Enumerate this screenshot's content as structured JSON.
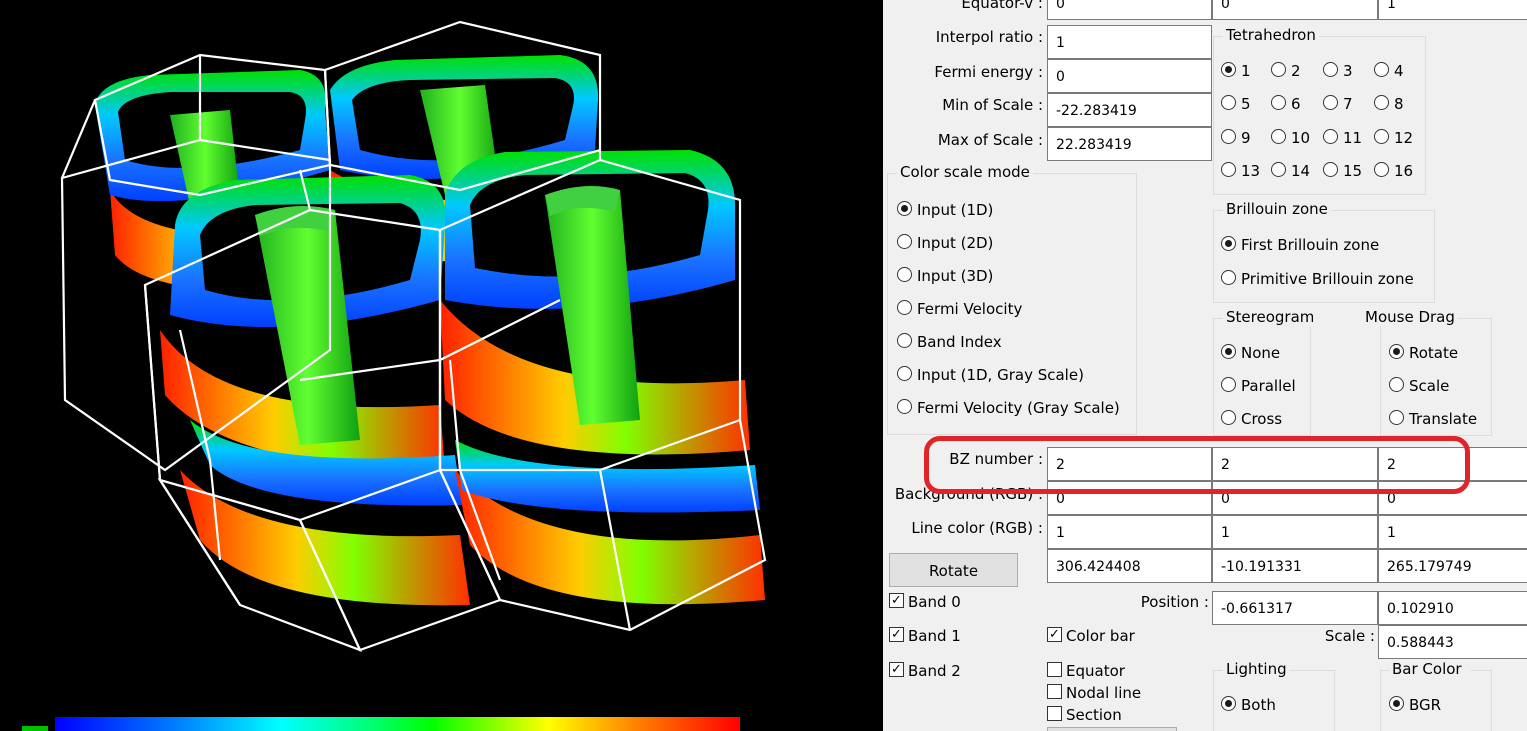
{
  "viewport": {
    "background": "#000000",
    "wire_color": "#ffffff",
    "colorbar_colors": [
      "#0000ff",
      "#00ffff",
      "#00ff00",
      "#ffff00",
      "#ff0000"
    ]
  },
  "fields": {
    "equator_v": {
      "label": "Equator-v :",
      "values": [
        "0",
        "0",
        "1"
      ]
    },
    "interpol_ratio": {
      "label": "Interpol ratio :",
      "value": "1"
    },
    "fermi_energy": {
      "label": "Fermi energy :",
      "value": "0"
    },
    "min_scale": {
      "label": "Min of Scale :",
      "value": "-22.283419"
    },
    "max_scale": {
      "label": "Max of Scale :",
      "value": "22.283419"
    },
    "bz_number": {
      "label": "BZ number :",
      "values": [
        "2",
        "2",
        "2"
      ]
    },
    "background_rgb": {
      "label": "Background (RGB) :",
      "values": [
        "0",
        "0",
        "0"
      ]
    },
    "line_color": {
      "label": "Line color (RGB) :",
      "values": [
        "1",
        "1",
        "1"
      ]
    },
    "rotate_values": [
      "306.424408",
      "-10.191331",
      "265.179749"
    ],
    "position": {
      "label": "Position :",
      "values": [
        "-0.661317",
        "0.102910"
      ]
    },
    "scale": {
      "label": "Scale :",
      "value": "0.588443"
    }
  },
  "tetrahedron": {
    "title": "Tetrahedron",
    "options": [
      "1",
      "2",
      "3",
      "4",
      "5",
      "6",
      "7",
      "8",
      "9",
      "10",
      "11",
      "12",
      "13",
      "14",
      "15",
      "16"
    ],
    "selected": "1"
  },
  "color_scale_mode": {
    "title": "Color scale mode",
    "options": [
      "Input (1D)",
      "Input (2D)",
      "Input (3D)",
      "Fermi Velocity",
      "Band Index",
      "Input (1D, Gray Scale)",
      "Fermi Velocity (Gray Scale)"
    ],
    "selected": "Input (1D)"
  },
  "brillouin_zone": {
    "title": "Brillouin zone",
    "options": [
      "First Brillouin zone",
      "Primitive Brillouin zone"
    ],
    "selected": "First Brillouin zone"
  },
  "stereogram": {
    "title": "Stereogram",
    "options": [
      "None",
      "Parallel",
      "Cross"
    ],
    "selected": "None"
  },
  "mouse_drag": {
    "title": "Mouse Drag",
    "options": [
      "Rotate",
      "Scale",
      "Translate"
    ],
    "selected": "Rotate"
  },
  "lighting": {
    "title": "Lighting",
    "options": [
      "Both"
    ],
    "selected": "Both"
  },
  "bar_color": {
    "title": "Bar Color",
    "options": [
      "BGR"
    ],
    "selected": "BGR"
  },
  "rotate_button": "Rotate",
  "bands": [
    {
      "label": "Band 0",
      "checked": true
    },
    {
      "label": "Band 1",
      "checked": true
    },
    {
      "label": "Band 2",
      "checked": true
    }
  ],
  "options": {
    "color_bar": {
      "label": "Color bar",
      "checked": true
    },
    "equator": {
      "label": "Equator",
      "checked": false
    },
    "nodal_line": {
      "label": "Nodal line",
      "checked": false
    },
    "section": {
      "label": "Section",
      "checked": false
    }
  },
  "highlight_color": "#e0242a"
}
